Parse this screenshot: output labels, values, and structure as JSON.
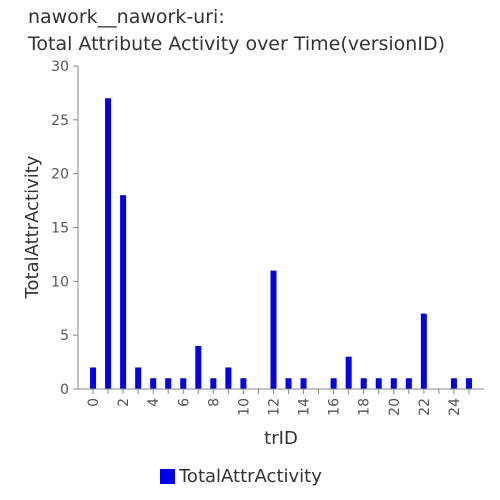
{
  "chart_data": {
    "type": "bar",
    "title_lines": [
      "nawork__nawork-uri:",
      "Total Attribute Activity over Time(versionID)"
    ],
    "xlabel": "trID",
    "ylabel": "TotalAttrActivity",
    "x_ticks": [
      "0",
      "2",
      "4",
      "6",
      "8",
      "10",
      "12",
      "14",
      "16",
      "18",
      "20",
      "22",
      "24"
    ],
    "y_ticks": [
      "0",
      "5",
      "10",
      "15",
      "20",
      "25",
      "30"
    ],
    "ylim": [
      0,
      30
    ],
    "xlim": [
      -1,
      26
    ],
    "grid": false,
    "legend_position": "bottom",
    "series": [
      {
        "name": "TotalAttrActivity",
        "color": "#0000ee",
        "x": [
          0,
          1,
          2,
          3,
          4,
          5,
          6,
          7,
          8,
          9,
          10,
          12,
          13,
          14,
          16,
          17,
          18,
          19,
          20,
          21,
          22,
          24,
          25
        ],
        "values": [
          2,
          27,
          18,
          2,
          1,
          1,
          1,
          4,
          1,
          2,
          1,
          11,
          1,
          1,
          1,
          3,
          1,
          1,
          1,
          1,
          7,
          1,
          1
        ]
      }
    ]
  }
}
